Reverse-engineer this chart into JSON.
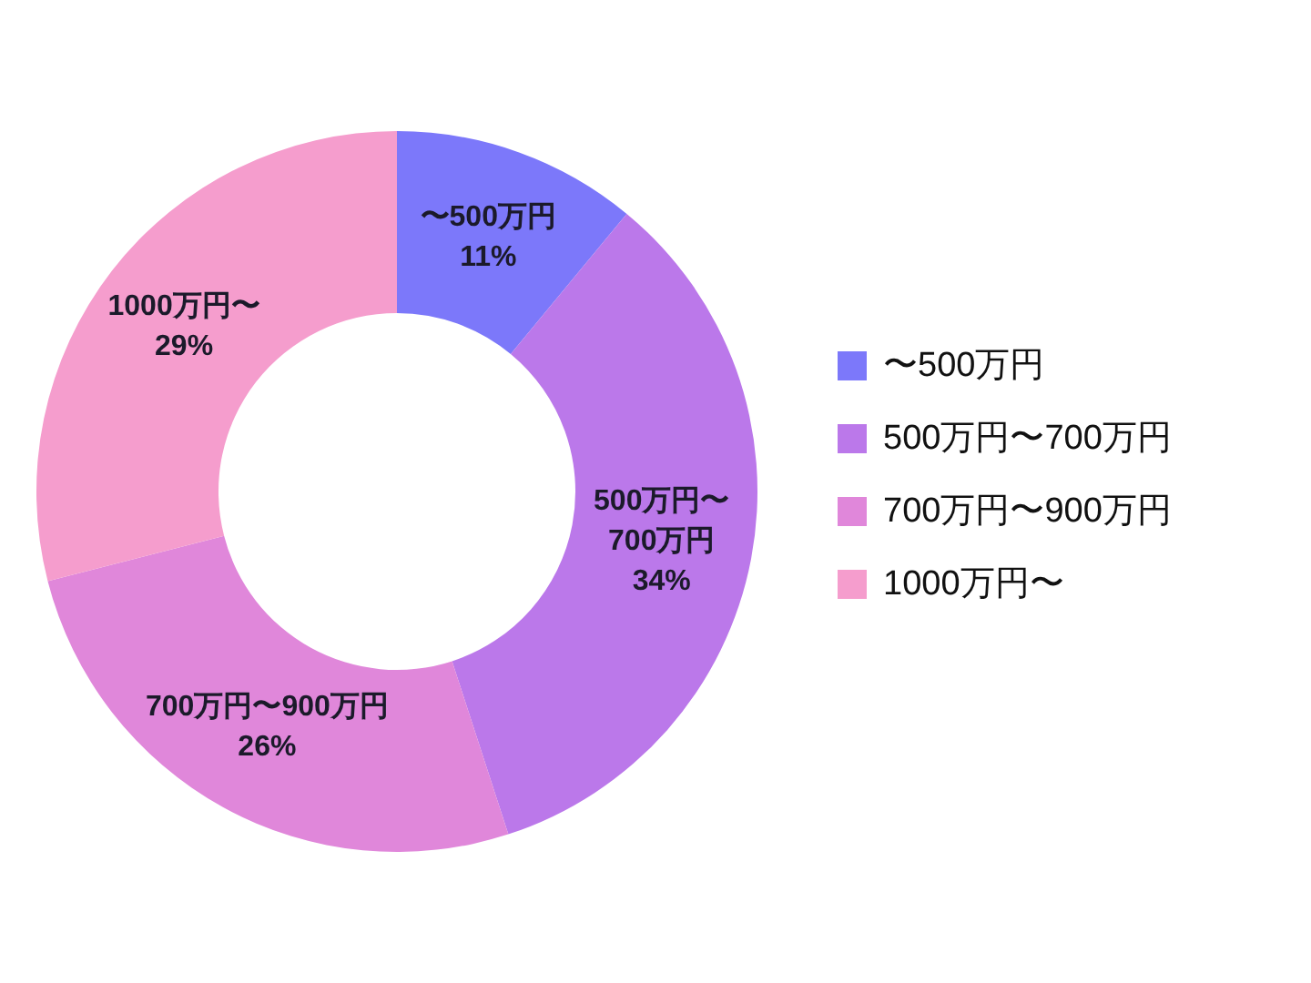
{
  "chart_data": {
    "type": "donut",
    "categories": [
      "〜500万円",
      "500万円〜700万円",
      "700万円〜900万円",
      "1000万円〜"
    ],
    "values": [
      11,
      34,
      26,
      29
    ],
    "colors": [
      "#7c78fa",
      "#bb78ea",
      "#e087da",
      "#f59dcd"
    ],
    "value_labels": [
      "11%",
      "34%",
      "26%",
      "29%"
    ],
    "legend": "right"
  }
}
